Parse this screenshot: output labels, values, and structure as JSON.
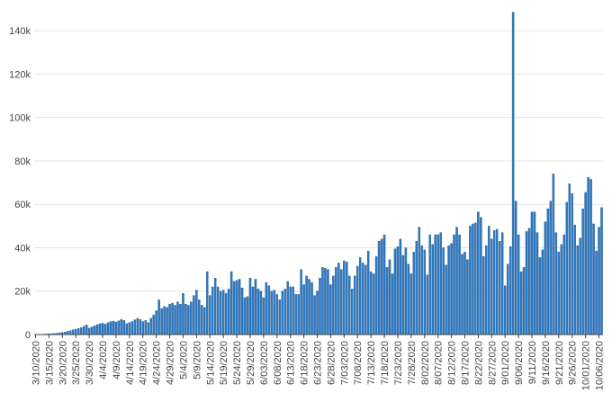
{
  "chart_data": {
    "type": "bar",
    "title": "",
    "xlabel": "",
    "ylabel": "",
    "ylim": [
      0,
      150000
    ],
    "y_ticks": [
      0,
      20000,
      40000,
      60000,
      80000,
      100000,
      120000,
      140000
    ],
    "y_tick_labels": [
      "0",
      "20k",
      "40k",
      "60k",
      "80k",
      "100k",
      "120k",
      "140k"
    ],
    "x_start": "3/10/2020",
    "x_tick_labels": [
      "3/10/2020",
      "3/15/2020",
      "3/20/2020",
      "3/25/2020",
      "3/30/2020",
      "4/4/2020",
      "4/9/2020",
      "4/14/2020",
      "4/19/2020",
      "4/24/2020",
      "4/29/2020",
      "5/4/2020",
      "5/9/2020",
      "5/14/2020",
      "5/19/2020",
      "5/24/2020",
      "5/29/2020",
      "6/03/2020",
      "6/08/2020",
      "6/13/2020",
      "6/18/2020",
      "6/23/2020",
      "6/28/2020",
      "7/03/2020",
      "7/08/2020",
      "7/13/2020",
      "7/18/2020",
      "7/23/2020",
      "7/28/2020",
      "8/02/2020",
      "8/07/2020",
      "8/12/2020",
      "8/17/2020",
      "8/22/2020",
      "8/27/2020",
      "9/01/2020",
      "9/06/2020",
      "9/11/2020",
      "9/16/2020",
      "9/21/2020",
      "9/26/2020",
      "10/01/2020",
      "10/06/2020"
    ],
    "grid": true,
    "bar_color": "#2f78bf",
    "values": [
      100,
      100,
      150,
      200,
      250,
      300,
      400,
      500,
      600,
      800,
      1000,
      1200,
      1500,
      1800,
      2200,
      2500,
      2800,
      3200,
      3800,
      4500,
      3000,
      3500,
      4000,
      4600,
      5000,
      5200,
      4800,
      5500,
      6000,
      6200,
      5800,
      6300,
      7000,
      6500,
      5000,
      5500,
      6000,
      6800,
      7500,
      7000,
      6000,
      6500,
      5500,
      7500,
      9000,
      11000,
      16000,
      12000,
      13000,
      12500,
      14000,
      14500,
      13500,
      15000,
      14000,
      19000,
      14000,
      13500,
      15000,
      18000,
      20500,
      16000,
      13500,
      12500,
      29000,
      18000,
      22000,
      26000,
      22000,
      20000,
      20500,
      19000,
      21000,
      29000,
      24500,
      25000,
      25500,
      21500,
      17000,
      17500,
      26000,
      22000,
      25500,
      21000,
      20000,
      17000,
      24000,
      22500,
      20000,
      20500,
      18500,
      16000,
      20000,
      21000,
      24500,
      22000,
      22000,
      18500,
      18500,
      30000,
      23000,
      27000,
      25500,
      24000,
      18000,
      20000,
      26000,
      31000,
      30500,
      30000,
      23000,
      27000,
      31000,
      33000,
      30000,
      34000,
      33500,
      27000,
      21000,
      27000,
      31500,
      35500,
      33000,
      32000,
      38500,
      29000,
      28000,
      36000,
      43000,
      44000,
      46000,
      31000,
      34500,
      28000,
      39500,
      40500,
      44000,
      36500,
      40000,
      32500,
      28000,
      38000,
      43000,
      49500,
      41000,
      39000,
      27500,
      46000,
      41500,
      46000,
      46000,
      47000,
      40000,
      32000,
      41000,
      42000,
      46000,
      49500,
      46000,
      37000,
      38000,
      34500,
      50000,
      51000,
      51500,
      56500,
      54000,
      36000,
      41000,
      50000,
      44000,
      48000,
      48500,
      43000,
      47000,
      22500,
      32500,
      40500,
      148500,
      61500,
      46000,
      29000,
      31000,
      47500,
      49000,
      56500,
      56500,
      47000,
      35500,
      39000,
      52000,
      58000,
      61500,
      74000,
      47000,
      38000,
      41500,
      46000,
      61000,
      69500,
      65000,
      50500,
      41000,
      44500,
      58000,
      65500,
      72500,
      71500,
      51000,
      38500,
      49500,
      58500
    ]
  }
}
